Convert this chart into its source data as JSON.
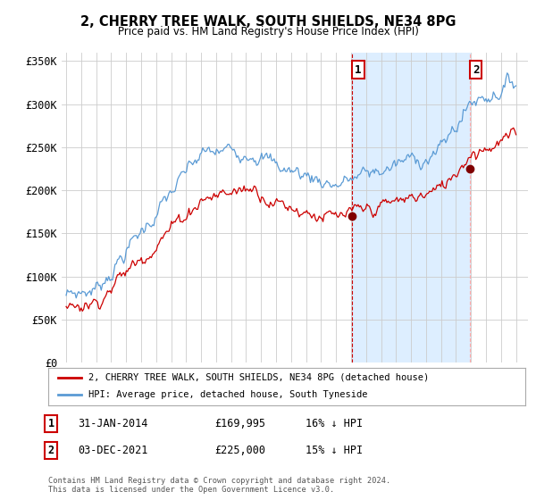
{
  "title": "2, CHERRY TREE WALK, SOUTH SHIELDS, NE34 8PG",
  "subtitle": "Price paid vs. HM Land Registry's House Price Index (HPI)",
  "legend_line1": "2, CHERRY TREE WALK, SOUTH SHIELDS, NE34 8PG (detached house)",
  "legend_line2": "HPI: Average price, detached house, South Tyneside",
  "annotation1_label": "1",
  "annotation1_date": "31-JAN-2014",
  "annotation1_price": "£169,995",
  "annotation1_hpi": "16% ↓ HPI",
  "annotation2_label": "2",
  "annotation2_date": "03-DEC-2021",
  "annotation2_price": "£225,000",
  "annotation2_hpi": "15% ↓ HPI",
  "footer": "Contains HM Land Registry data © Crown copyright and database right 2024.\nThis data is licensed under the Open Government Licence v3.0.",
  "hpi_color": "#5b9bd5",
  "price_color": "#cc0000",
  "annotation_color": "#cc0000",
  "shade_color": "#ddeeff",
  "background_color": "#ffffff",
  "grid_color": "#cccccc",
  "ylim": [
    0,
    360000
  ],
  "yticks": [
    0,
    50000,
    100000,
    150000,
    200000,
    250000,
    300000,
    350000
  ],
  "sale1_x": 2014.08,
  "sale1_y": 169995,
  "sale2_x": 2021.92,
  "sale2_y": 225000,
  "xlim_left": 1994.7,
  "xlim_right": 2025.8
}
